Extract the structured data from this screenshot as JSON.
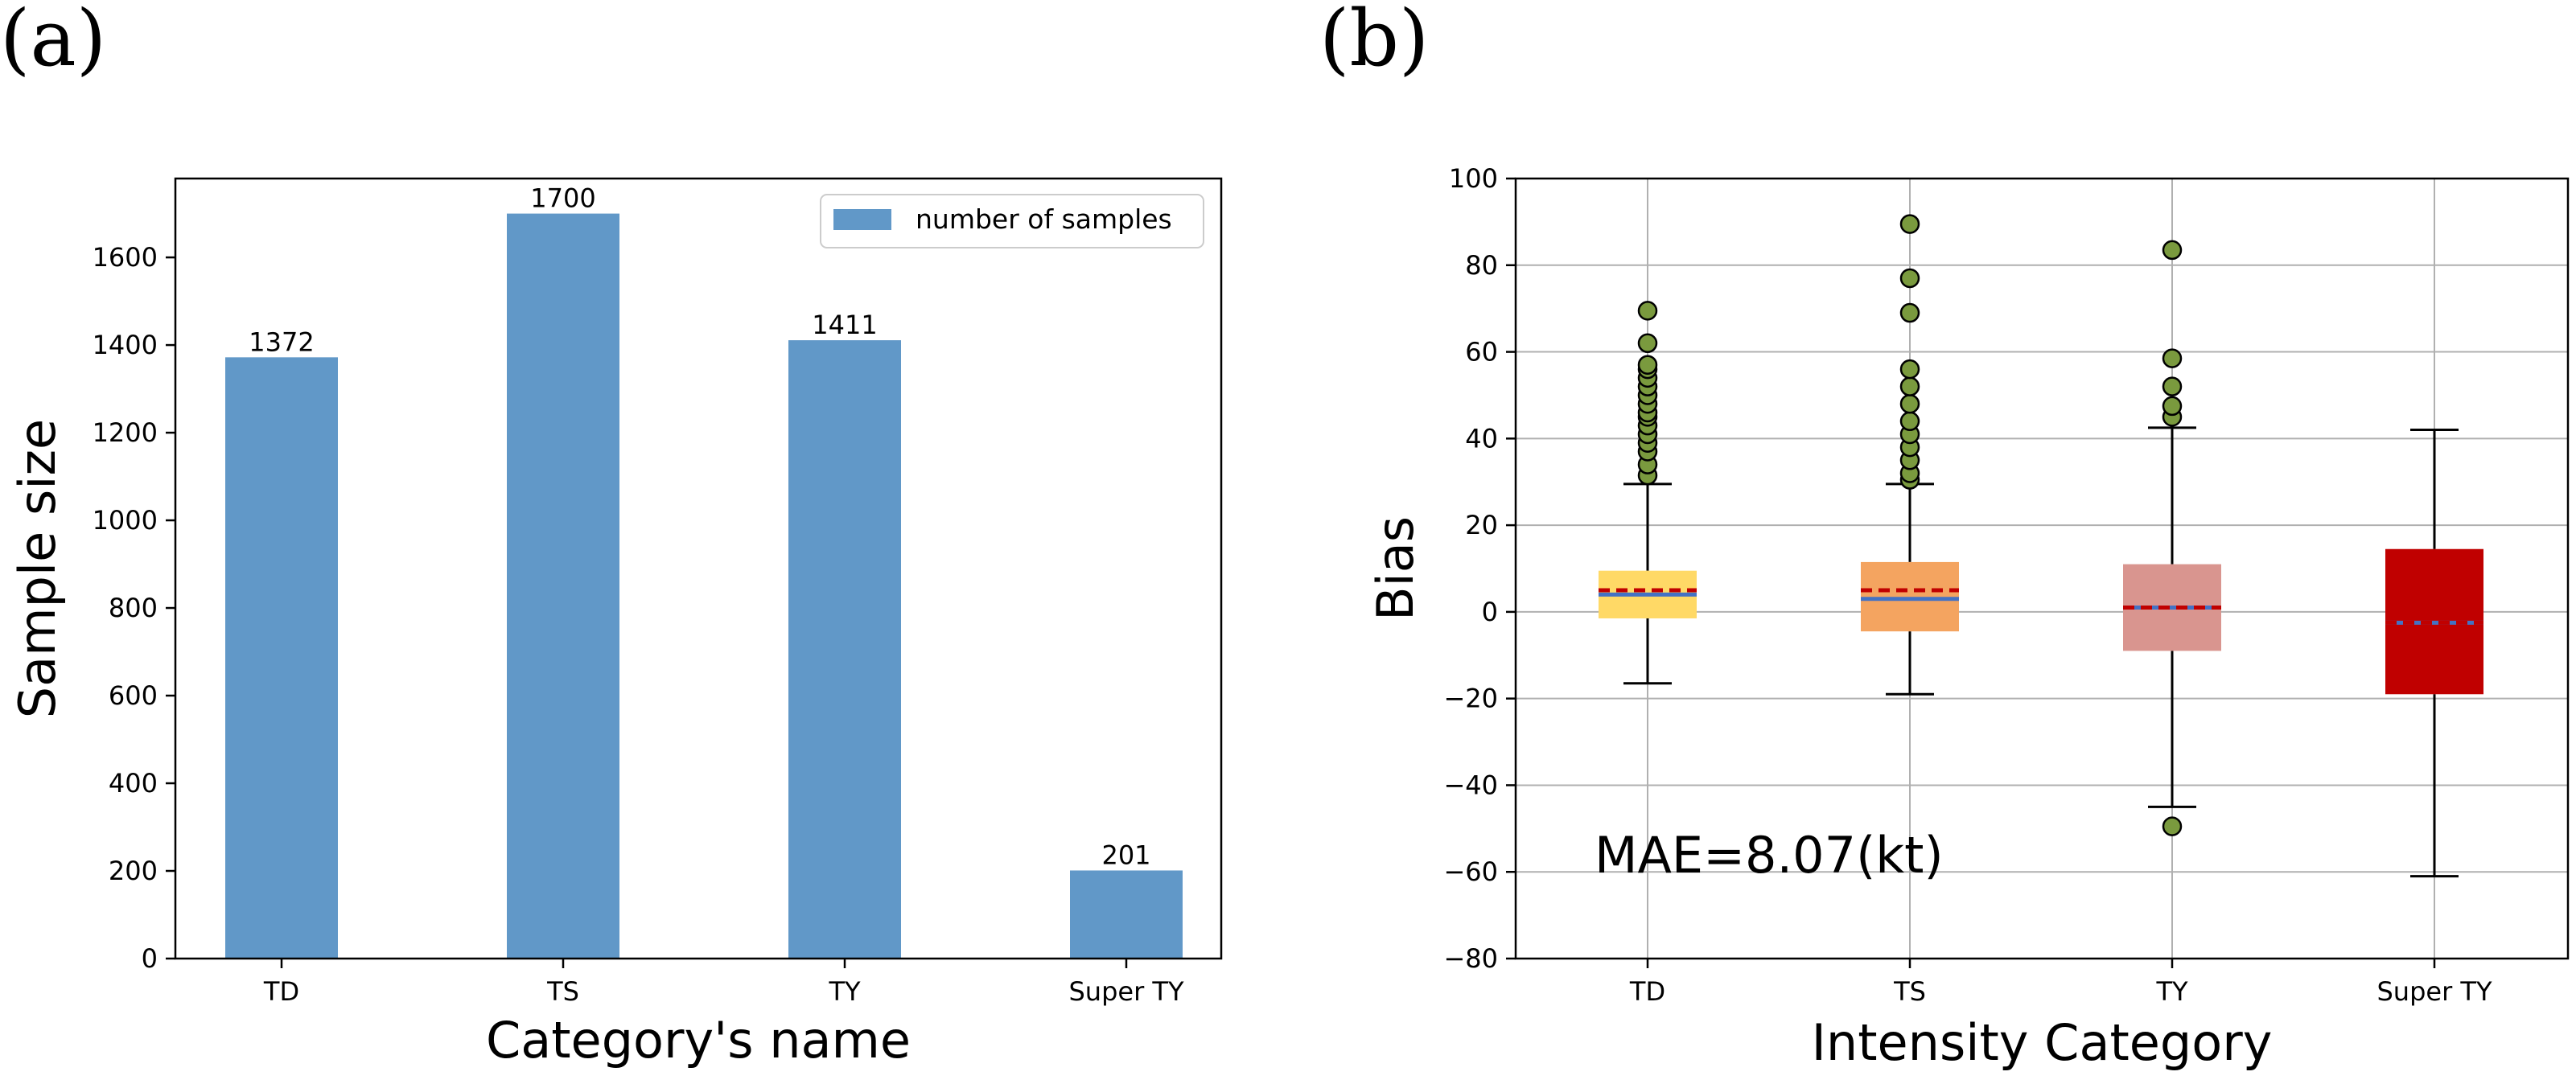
{
  "panels": {
    "a_label": "(a)",
    "b_label": "(b)"
  },
  "colors": {
    "bar": "#6198c8",
    "box_td": "#ffd966",
    "box_ts": "#f4a460",
    "box_ty": "#d9958f",
    "box_super": "#c00000",
    "mean_line": "#c00000",
    "median_line": "#4472c4",
    "outlier": "#7a9a3e",
    "grid": "#b0b0b0"
  },
  "chart_data": [
    {
      "type": "bar",
      "title": "",
      "categories": [
        "TD",
        "TS",
        "TY",
        "Super TY"
      ],
      "values": [
        1372,
        1700,
        1411,
        201
      ],
      "data_labels": [
        "1372",
        "1700",
        "1411",
        "201"
      ],
      "xlabel": "Category's name",
      "ylabel": "Sample size",
      "ylim": [
        0,
        1780
      ],
      "yticks": [
        0,
        200,
        400,
        600,
        800,
        1000,
        1200,
        1400,
        1600
      ],
      "ytick_labels": [
        "0",
        "200",
        "400",
        "600",
        "800",
        "1000",
        "1200",
        "1400",
        "1600"
      ],
      "legend": {
        "entries": [
          "number of samples"
        ],
        "placement": "top-right"
      },
      "grid": false
    },
    {
      "type": "box",
      "title": "",
      "categories": [
        "TD",
        "TS",
        "TY",
        "Super TY"
      ],
      "xlabel": "Intensity Category",
      "ylabel": "Bias",
      "ylim": [
        -80,
        100
      ],
      "yticks": [
        -80,
        -60,
        -40,
        -20,
        0,
        20,
        40,
        60,
        80,
        100
      ],
      "ytick_labels": [
        "−80",
        "−60",
        "−40",
        "−20",
        "0",
        "20",
        "40",
        "60",
        "80",
        "100"
      ],
      "grid": true,
      "annotation": "MAE=8.07(kt)",
      "boxes": [
        {
          "name": "TD",
          "q1": -1.5,
          "q3": 9.5,
          "median": 4,
          "mean": 5,
          "whisker_low": -16.5,
          "whisker_high": 29.5,
          "outliers": [
            31.5,
            34,
            37,
            39,
            41,
            43,
            45,
            46,
            48,
            50,
            52,
            54,
            56,
            57,
            62,
            69.5
          ]
        },
        {
          "name": "TS",
          "q1": -4.5,
          "q3": 11.5,
          "median": 3,
          "mean": 5,
          "whisker_low": -19,
          "whisker_high": 29.5,
          "outliers": [
            30.5,
            32,
            35,
            38,
            41,
            44,
            48,
            52,
            56,
            69,
            77,
            89.5
          ]
        },
        {
          "name": "TY",
          "q1": -9,
          "q3": 11,
          "median": 1,
          "mean": 1,
          "whisker_low": -45,
          "whisker_high": 42.5,
          "outliers": [
            45,
            47.5,
            52,
            58.5,
            83.5,
            -49.5
          ]
        },
        {
          "name": "Super TY",
          "q1": -19,
          "q3": 14.5,
          "median": -2.5,
          "mean": -2.5,
          "whisker_low": -61,
          "whisker_high": 42,
          "outliers": []
        }
      ]
    }
  ]
}
